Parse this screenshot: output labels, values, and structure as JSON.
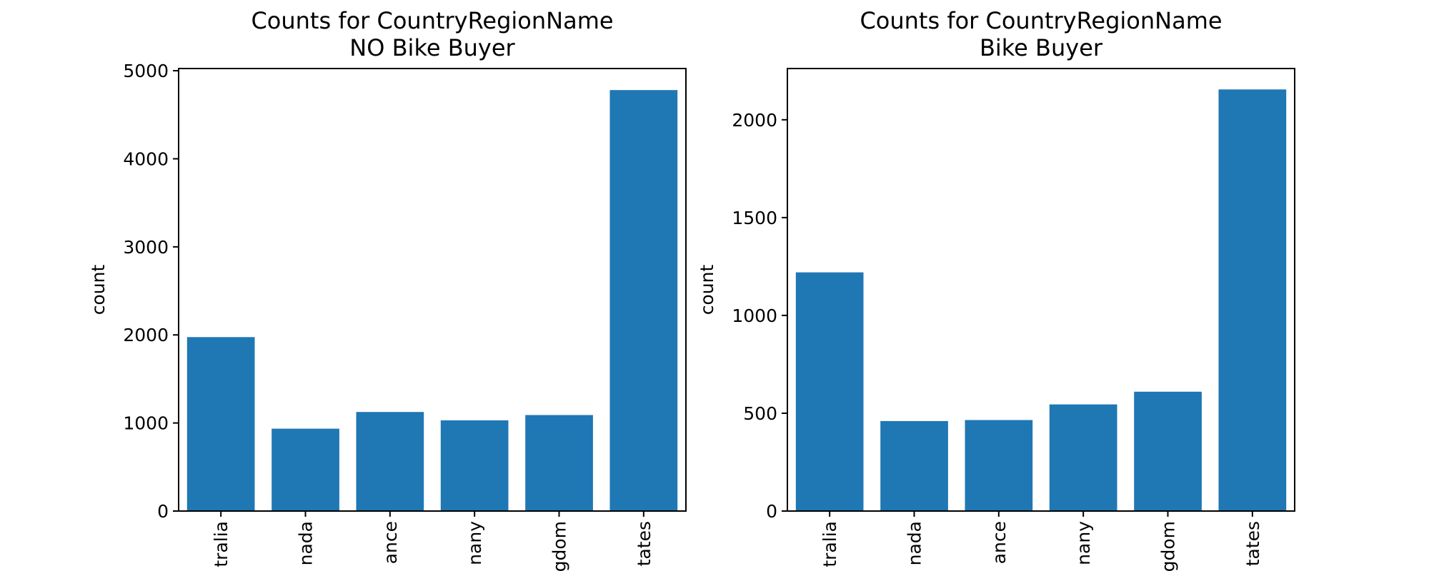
{
  "colors": {
    "bar": "#1f77b4",
    "axis": "#000000"
  },
  "chart_data": [
    {
      "type": "bar",
      "title": "Counts for CountryRegionName\nNO Bike Buyer",
      "ylabel": "count",
      "xlabel": "",
      "categories": [
        "Australia",
        "Canada",
        "France",
        "Germany",
        "United Kingdom",
        "United States"
      ],
      "tick_labels_visible": [
        "tralia",
        "nada",
        "ance",
        "nany",
        "gdom",
        "tates"
      ],
      "values": [
        1975,
        935,
        1125,
        1030,
        1090,
        4780
      ],
      "ylim": [
        0,
        5025
      ],
      "yticks": [
        0,
        1000,
        2000,
        3000,
        4000,
        5000
      ],
      "grid": false,
      "legend": "none"
    },
    {
      "type": "bar",
      "title": "Counts for CountryRegionName\nBike Buyer",
      "ylabel": "count",
      "xlabel": "",
      "categories": [
        "Australia",
        "Canada",
        "France",
        "Germany",
        "United Kingdom",
        "United States"
      ],
      "tick_labels_visible": [
        "tralia",
        "nada",
        "ance",
        "nany",
        "gdom",
        "tates"
      ],
      "values": [
        1220,
        460,
        465,
        545,
        610,
        2155
      ],
      "ylim": [
        0,
        2262
      ],
      "yticks": [
        0,
        500,
        1000,
        1500,
        2000
      ],
      "grid": false,
      "legend": "none"
    }
  ]
}
